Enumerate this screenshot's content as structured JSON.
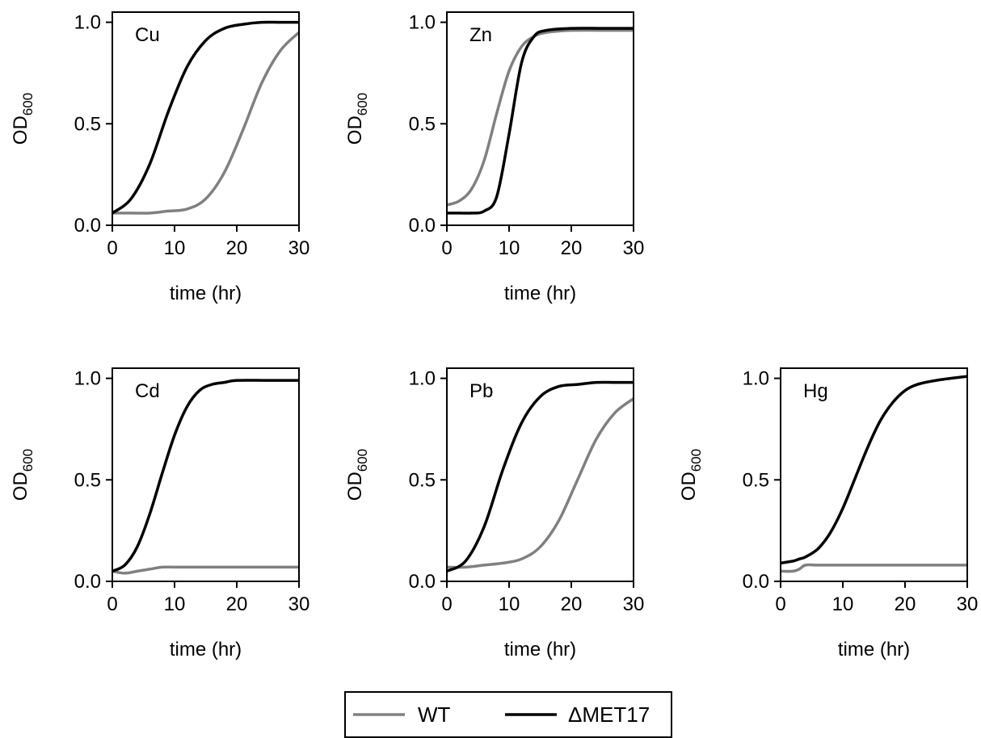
{
  "legend": {
    "entries": [
      {
        "label": "WT",
        "color": "#808080"
      },
      {
        "label": "ΔMET17",
        "color": "#000000"
      }
    ]
  },
  "axes_text": {
    "xlabel": "time (hr)",
    "ylabel_main": "OD",
    "ylabel_sub": "600"
  },
  "chart_data": [
    {
      "type": "line",
      "panel": "Cu",
      "xlim": [
        0,
        30
      ],
      "ylim": [
        0,
        1.0
      ],
      "xticks": [
        0,
        10,
        20,
        30
      ],
      "yticks": [
        "0.0",
        "0.5",
        "1.0"
      ],
      "xlabel": "time (hr)",
      "ylabel": "OD600",
      "x": [
        0,
        3,
        6,
        9,
        12,
        15,
        18,
        21,
        24,
        27,
        30
      ],
      "series": [
        {
          "name": "WT",
          "color": "#808080",
          "values": [
            0.06,
            0.06,
            0.06,
            0.07,
            0.08,
            0.13,
            0.26,
            0.47,
            0.7,
            0.86,
            0.95
          ]
        },
        {
          "name": "ΔMET17",
          "color": "#000000",
          "values": [
            0.06,
            0.13,
            0.3,
            0.56,
            0.78,
            0.91,
            0.97,
            0.99,
            1.0,
            1.0,
            1.0
          ]
        }
      ]
    },
    {
      "type": "line",
      "panel": "Zn",
      "xlim": [
        0,
        30
      ],
      "ylim": [
        0,
        1.0
      ],
      "xticks": [
        0,
        10,
        20,
        30
      ],
      "yticks": [
        "0.0",
        "0.5",
        "1.0"
      ],
      "xlabel": "time (hr)",
      "ylabel": "OD600",
      "x": [
        0,
        2,
        4,
        6,
        8,
        10,
        12,
        14,
        16,
        20,
        25,
        30
      ],
      "series": [
        {
          "name": "WT",
          "color": "#808080",
          "values": [
            0.1,
            0.12,
            0.18,
            0.32,
            0.55,
            0.76,
            0.88,
            0.93,
            0.95,
            0.96,
            0.96,
            0.96
          ]
        },
        {
          "name": "ΔMET17",
          "color": "#000000",
          "values": [
            0.06,
            0.06,
            0.06,
            0.07,
            0.14,
            0.45,
            0.8,
            0.93,
            0.96,
            0.97,
            0.97,
            0.97
          ]
        }
      ]
    },
    {
      "type": "line",
      "panel": "Cd",
      "xlim": [
        0,
        30
      ],
      "ylim": [
        0,
        1.0
      ],
      "xticks": [
        0,
        10,
        20,
        30
      ],
      "yticks": [
        "0.0",
        "0.5",
        "1.0"
      ],
      "xlabel": "time (hr)",
      "ylabel": "OD600",
      "x": [
        0,
        2,
        4,
        6,
        8,
        10,
        12,
        14,
        16,
        18,
        20,
        25,
        30
      ],
      "series": [
        {
          "name": "WT",
          "color": "#808080",
          "values": [
            0.05,
            0.04,
            0.05,
            0.06,
            0.07,
            0.07,
            0.07,
            0.07,
            0.07,
            0.07,
            0.07,
            0.07,
            0.07
          ]
        },
        {
          "name": "ΔMET17",
          "color": "#000000",
          "values": [
            0.05,
            0.08,
            0.17,
            0.33,
            0.53,
            0.72,
            0.86,
            0.94,
            0.97,
            0.98,
            0.99,
            0.99,
            0.99
          ]
        }
      ]
    },
    {
      "type": "line",
      "panel": "Pb",
      "xlim": [
        0,
        30
      ],
      "ylim": [
        0,
        1.0
      ],
      "xticks": [
        0,
        10,
        20,
        30
      ],
      "yticks": [
        "0.0",
        "0.5",
        "1.0"
      ],
      "xlabel": "time (hr)",
      "ylabel": "OD600",
      "x": [
        0,
        3,
        6,
        9,
        12,
        15,
        18,
        21,
        24,
        27,
        30
      ],
      "series": [
        {
          "name": "WT",
          "color": "#808080",
          "values": [
            0.07,
            0.07,
            0.08,
            0.09,
            0.11,
            0.17,
            0.3,
            0.5,
            0.7,
            0.83,
            0.9
          ]
        },
        {
          "name": "ΔMET17",
          "color": "#000000",
          "values": [
            0.05,
            0.1,
            0.27,
            0.55,
            0.78,
            0.91,
            0.96,
            0.97,
            0.98,
            0.98,
            0.98
          ]
        }
      ]
    },
    {
      "type": "line",
      "panel": "Hg",
      "xlim": [
        0,
        30
      ],
      "ylim": [
        0,
        1.0
      ],
      "xticks": [
        0,
        10,
        20,
        30
      ],
      "yticks": [
        "0.0",
        "0.5",
        "1.0"
      ],
      "xlabel": "time (hr)",
      "ylabel": "OD600",
      "x": [
        0,
        2,
        3,
        4,
        6,
        8,
        10,
        12,
        14,
        16,
        18,
        20,
        22,
        25,
        30
      ],
      "series": [
        {
          "name": "WT",
          "color": "#808080",
          "values": [
            0.05,
            0.05,
            0.06,
            0.08,
            0.08,
            0.08,
            0.08,
            0.08,
            0.08,
            0.08,
            0.08,
            0.08,
            0.08,
            0.08,
            0.08
          ]
        },
        {
          "name": "ΔMET17",
          "color": "#000000",
          "values": [
            0.09,
            0.1,
            0.11,
            0.12,
            0.16,
            0.24,
            0.36,
            0.51,
            0.66,
            0.79,
            0.88,
            0.94,
            0.97,
            0.99,
            1.01
          ]
        }
      ]
    }
  ]
}
